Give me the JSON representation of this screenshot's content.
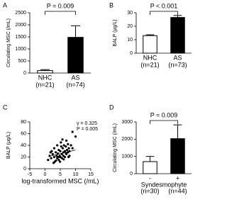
{
  "chart_data": [
    {
      "type": "bar",
      "panel": "A",
      "ylabel": "Circulating MSC (/mL)",
      "categories": [
        "NHC",
        "AS"
      ],
      "n_labels": [
        "(n=21)",
        "(n=74)"
      ],
      "values": [
        100,
        1480
      ],
      "errors": [
        40,
        480
      ],
      "colors": [
        "#ffffff",
        "#000000"
      ],
      "ylim": [
        0,
        2500
      ],
      "yticks": [
        0,
        500,
        1000,
        1500,
        2000,
        2500
      ],
      "annotation": "P = 0.009"
    },
    {
      "type": "bar",
      "panel": "B",
      "ylabel": "BALP (μg/L)",
      "categories": [
        "NHC",
        "AS"
      ],
      "n_labels": [
        "(n=21)",
        "(n=73)"
      ],
      "values": [
        13,
        26.5
      ],
      "errors": [
        0.7,
        1.5
      ],
      "colors": [
        "#ffffff",
        "#000000"
      ],
      "ylim": [
        0,
        30
      ],
      "yticks": [
        0,
        10,
        20,
        30
      ],
      "annotation": "P < 0.001"
    },
    {
      "type": "scatter",
      "panel": "C",
      "ylabel": "BALP (μg/L)",
      "xlabel": "log-transformed MSC (/mL)",
      "x": [
        1,
        1.5,
        2,
        2.2,
        2.5,
        3,
        3,
        3.2,
        3.5,
        3.8,
        4,
        4,
        4.2,
        4.5,
        4.5,
        4.8,
        5,
        5,
        5.2,
        5.5,
        5.5,
        5.8,
        6,
        6,
        6.2,
        6.5,
        6.5,
        6.8,
        7,
        7,
        7.2,
        7.5,
        7.5,
        7.8,
        8,
        8,
        8.5,
        9,
        9,
        10,
        2.8,
        3.6,
        4.4,
        5.3,
        6.1,
        6.9,
        7.7,
        1.8,
        5.7,
        4.9
      ],
      "y": [
        15,
        22,
        18,
        30,
        25,
        20,
        35,
        12,
        28,
        22,
        18,
        40,
        26,
        15,
        32,
        22,
        30,
        20,
        45,
        25,
        18,
        35,
        28,
        22,
        40,
        30,
        20,
        38,
        25,
        48,
        32,
        28,
        42,
        35,
        30,
        22,
        40,
        63,
        35,
        55,
        10,
        14,
        20,
        38,
        16,
        26,
        20,
        28,
        50,
        12
      ],
      "trendline": {
        "x": [
          2,
          10
        ],
        "y": [
          22,
          32
        ]
      },
      "xlim": [
        -5,
        15
      ],
      "xticks": [
        -5,
        0,
        5,
        10,
        15
      ],
      "ylim": [
        0,
        80
      ],
      "yticks": [
        0,
        20,
        40,
        60,
        80
      ],
      "annotations": [
        "γ = 0.325",
        "P = 0.005"
      ]
    },
    {
      "type": "bar",
      "panel": "D",
      "ylabel": "Circulating MSC (/mL)",
      "xlabel": "Syndesmophyte",
      "categories": [
        "-",
        "+"
      ],
      "n_labels": [
        "(n=30)",
        "(n=44)"
      ],
      "values": [
        700,
        2030
      ],
      "errors": [
        300,
        800
      ],
      "colors": [
        "#ffffff",
        "#000000"
      ],
      "ylim": [
        0,
        3000
      ],
      "yticks": [
        0,
        1000,
        2000,
        3000
      ],
      "annotation": "P = 0.009"
    }
  ]
}
